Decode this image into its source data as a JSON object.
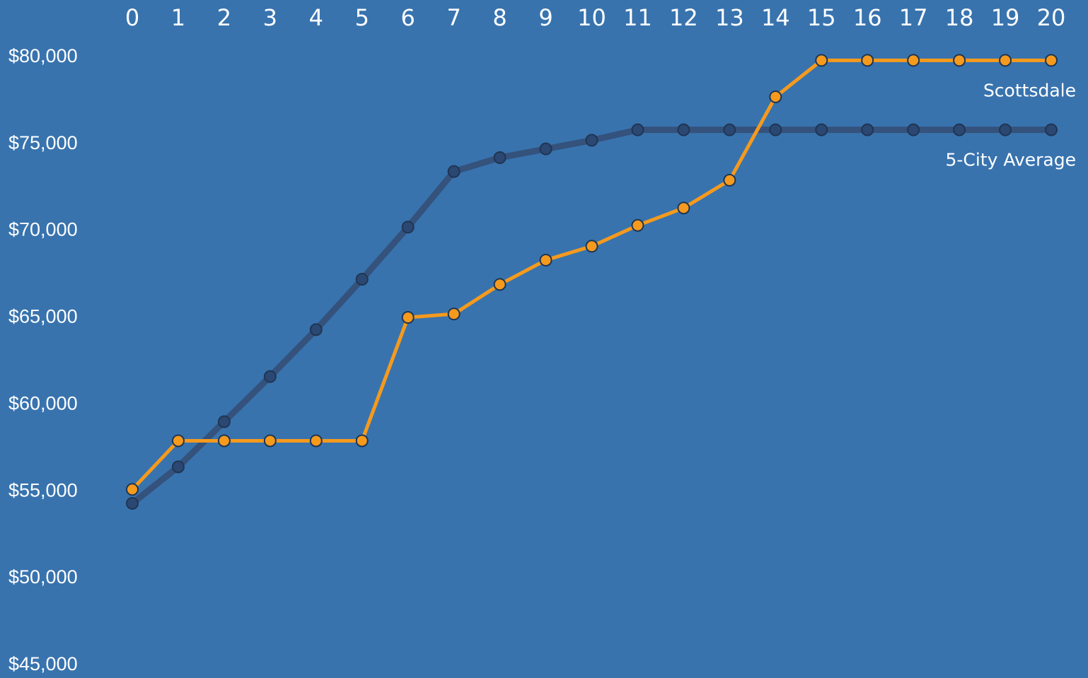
{
  "chart_data": {
    "type": "line",
    "title": "",
    "xlabel": "",
    "ylabel": "",
    "x": [
      0,
      1,
      2,
      3,
      4,
      5,
      6,
      7,
      8,
      9,
      10,
      11,
      12,
      13,
      14,
      15,
      16,
      17,
      18,
      19,
      20
    ],
    "x_tick_labels": [
      "0",
      "1",
      "2",
      "3",
      "4",
      "5",
      "6",
      "7",
      "8",
      "9",
      "10",
      "11",
      "12",
      "13",
      "14",
      "15",
      "16",
      "17",
      "18",
      "19",
      "20"
    ],
    "y_tick_labels": [
      "$80,000",
      "$75,000",
      "$70,000",
      "$65,000",
      "$60,000",
      "$55,000",
      "$50,000",
      "$45,000"
    ],
    "y_ticks": [
      80000,
      75000,
      70000,
      65000,
      60000,
      55000,
      50000,
      45000
    ],
    "ylim": [
      45000,
      80000
    ],
    "xlim": [
      0,
      20
    ],
    "grid": false,
    "series": [
      {
        "name": "5-City Average",
        "color": "#34527C",
        "marker_color": "#2B4873",
        "values": [
          54200,
          56300,
          58900,
          61500,
          64200,
          67100,
          70100,
          73300,
          74100,
          74600,
          75100,
          75700,
          75700,
          75700,
          75700,
          75700,
          75700,
          75700,
          75700,
          75700,
          75700
        ]
      },
      {
        "name": "Scottsdale",
        "color": "#F59A1D",
        "marker_color": "#F59A1D",
        "values": [
          55000,
          57800,
          57800,
          57800,
          57800,
          57800,
          64900,
          65100,
          66800,
          68200,
          69000,
          70200,
          71200,
          72800,
          77600,
          79700,
          79700,
          79700,
          79700,
          79700,
          79700
        ]
      }
    ]
  }
}
